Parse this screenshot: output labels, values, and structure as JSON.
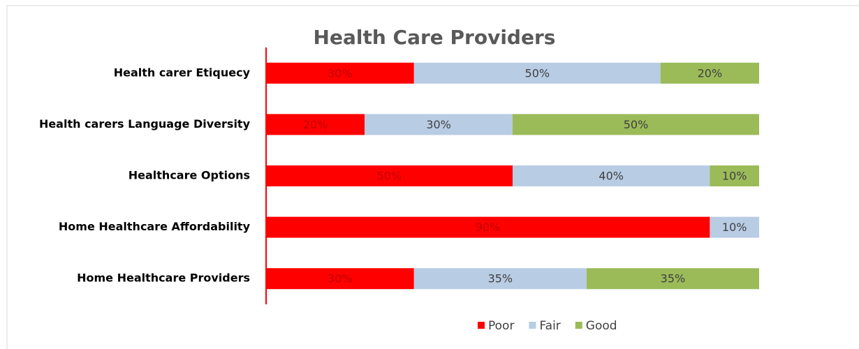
{
  "chart_data": {
    "type": "stacked-bar-horizontal",
    "title": "Health Care Providers",
    "categories": [
      "Health carer Etiquecy",
      "Health carers Language Diversity",
      "Healthcare Options",
      "Home Healthcare Affordability",
      "Home Healthcare Providers"
    ],
    "series": [
      {
        "name": "Poor",
        "color": "#ff0000",
        "label_color": "#c00000",
        "values": [
          30,
          20,
          50,
          90,
          30
        ],
        "value_labels": [
          "30%",
          "20%",
          "50%",
          "90%",
          "30%"
        ]
      },
      {
        "name": "Fair",
        "color": "#b8cce4",
        "label_color": "#404040",
        "values": [
          50,
          30,
          40,
          10,
          35
        ],
        "value_labels": [
          "50%",
          "30%",
          "40%",
          "10%",
          "35%"
        ]
      },
      {
        "name": "Good",
        "color": "#9bbb59",
        "label_color": "#404040",
        "values": [
          20,
          50,
          10,
          0,
          35
        ],
        "value_labels": [
          "20%",
          "50%",
          "10%",
          null,
          "35%"
        ]
      }
    ],
    "xlim": [
      0,
      100
    ],
    "axis_color": "#ff0000",
    "legend": "bottom"
  }
}
